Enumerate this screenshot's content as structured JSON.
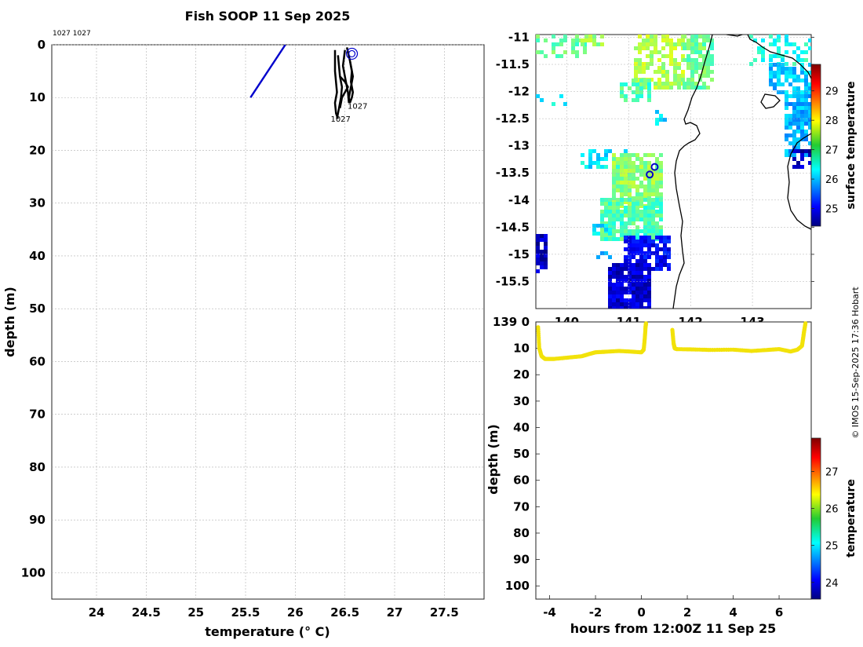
{
  "title": "Fish SOOP 11 Sep 2025",
  "credit": "© IMOS 15-Sep-2025 17:36 Hobart",
  "colors": {
    "profile_black": "#000000",
    "profile_blue": "#0000cc",
    "track_yellow": "#f2e20a",
    "grid": "#b0b0b0",
    "coast": "#000000"
  },
  "chart_data": [
    {
      "type": "line",
      "panel": "profile",
      "title": "Fish SOOP 11 Sep 2025",
      "xlabel": "temperature (° C)",
      "ylabel": "depth (m)",
      "xlim": [
        23.55,
        27.9
      ],
      "ylim": [
        0,
        105
      ],
      "y_inverted": true,
      "xticks": [
        24,
        24.5,
        25,
        25.5,
        26,
        26.5,
        27,
        27.5
      ],
      "yticks": [
        0,
        10,
        20,
        30,
        40,
        50,
        60,
        70,
        80,
        90,
        100
      ],
      "top_labels": "1027 1027",
      "grid": true,
      "series": [
        {
          "color": "#0000cc",
          "x": [
            25.55,
            25.9
          ],
          "y": [
            10,
            0
          ]
        },
        {
          "color": "#000000",
          "x": [
            26.4,
            26.4,
            26.42,
            26.4,
            26.41,
            26.43
          ],
          "y": [
            1,
            5,
            9,
            11,
            13,
            14
          ]
        },
        {
          "color": "#000000",
          "x": [
            26.43,
            26.45,
            26.47,
            26.46,
            26.44,
            26.42
          ],
          "y": [
            2,
            6,
            8,
            10,
            12,
            14
          ]
        },
        {
          "color": "#000000",
          "x": [
            26.5,
            26.48,
            26.51,
            26.53,
            26.54
          ],
          "y": [
            1,
            4,
            7,
            9,
            11
          ]
        },
        {
          "color": "#000000",
          "x": [
            26.55,
            26.57,
            26.56,
            26.58,
            26.57,
            26.55
          ],
          "y": [
            3,
            5,
            7,
            9,
            10,
            11
          ]
        },
        {
          "color": "#000000",
          "x": [
            26.52,
            26.55,
            26.58,
            26.56,
            26.54,
            26.55
          ],
          "y": [
            0.5,
            3,
            6,
            8,
            10,
            11
          ]
        },
        {
          "color": "#000000",
          "x": [
            26.45,
            26.5,
            26.53,
            26.5,
            26.47,
            26.45
          ],
          "y": [
            6,
            7,
            8,
            9,
            10,
            12
          ]
        }
      ],
      "markers": [
        {
          "x": 26.57,
          "y": 1.7,
          "color": "#0000cc"
        }
      ],
      "annotations": [
        {
          "text": "1027",
          "x": 26.55,
          "y": 11.5
        },
        {
          "text": "1027",
          "x": 26.38,
          "y": 14
        }
      ]
    },
    {
      "type": "heatmap",
      "panel": "map",
      "xlim": [
        139.5,
        143.95
      ],
      "ylim": [
        -16.0,
        -10.95
      ],
      "xticks": [
        "139",
        "140",
        "141",
        "142",
        "143"
      ],
      "yticks": [
        "-11",
        "-11.5",
        "-12",
        "-12.5",
        "-13",
        "-13.5",
        "-14",
        "-14.5",
        "-15",
        "-15.5"
      ],
      "grid": true,
      "colorbar": {
        "label": "surface temperature",
        "ticks": [
          25,
          26,
          27,
          28,
          29
        ],
        "range": [
          24.4,
          29.9
        ]
      },
      "markers": [
        {
          "lon": 141.34,
          "lat": -13.53,
          "color": "#0000cc"
        },
        {
          "lon": 141.42,
          "lat": -13.39,
          "color": "#0000cc"
        }
      ]
    },
    {
      "type": "scatter",
      "panel": "track",
      "xlabel": "hours from 12:00Z 11 Sep 25",
      "ylabel": "depth (m)",
      "xlim": [
        -4.6,
        7.4
      ],
      "ylim": [
        0,
        105
      ],
      "y_inverted": true,
      "xticks": [
        -4,
        -2,
        0,
        2,
        4,
        6
      ],
      "yticks": [
        0,
        10,
        20,
        30,
        40,
        50,
        60,
        70,
        80,
        90,
        100
      ],
      "colorbar": {
        "label": "temperature",
        "ticks": [
          24,
          25,
          26,
          27
        ],
        "range": [
          23.55,
          27.9
        ]
      },
      "series": [
        {
          "x": [
            -4.5,
            -4.45,
            -4.35,
            -4.2,
            -3.8,
            -3.2,
            -2.6,
            -2.3,
            -2.0,
            -1.6,
            -1.0,
            -0.5,
            0.0,
            0.1,
            0.15,
            0.18,
            0.2
          ],
          "y": [
            2,
            10,
            13,
            14,
            14,
            13.5,
            13,
            12.2,
            11.5,
            11.3,
            11.0,
            11.2,
            11.5,
            10.5,
            6,
            2,
            0.5
          ]
        },
        {
          "x": [
            1.35,
            1.4,
            1.45,
            1.55,
            2.2,
            3.0,
            4.0,
            4.8,
            5.5,
            6.0,
            6.5,
            6.8,
            7.0,
            7.05,
            7.1,
            7.15
          ],
          "y": [
            3,
            8,
            10,
            10.3,
            10.4,
            10.6,
            10.5,
            11.0,
            10.6,
            10.3,
            11.2,
            10.5,
            9,
            6,
            3,
            0.5
          ]
        }
      ]
    }
  ]
}
